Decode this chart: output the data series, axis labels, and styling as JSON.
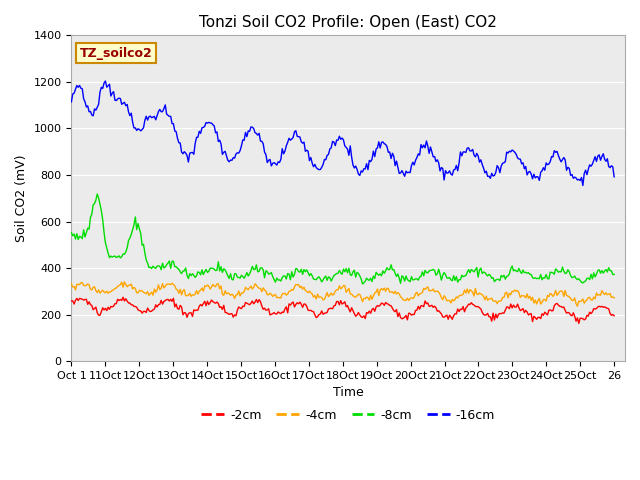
{
  "title": "Tonzi Soil CO2 Profile: Open (East) CO2",
  "ylabel": "Soil CO2 (mV)",
  "xlabel": "Time",
  "ylim": [
    0,
    1400
  ],
  "xtick_labels": [
    "Oct 1",
    "11Oct",
    "12Oct",
    "13Oct",
    "14Oct",
    "15Oct",
    "16Oct",
    "17Oct",
    "18Oct",
    "19Oct",
    "20Oct",
    "21Oct",
    "22Oct",
    "23Oct",
    "24Oct",
    "25Oct",
    "26"
  ],
  "ytick_vals": [
    0,
    200,
    400,
    600,
    800,
    1000,
    1200,
    1400
  ],
  "legend_labels": [
    "-2cm",
    "-4cm",
    "-8cm",
    "-16cm"
  ],
  "line_colors": [
    "#ff0000",
    "#ffa500",
    "#00dd00",
    "#0000ff"
  ],
  "bg_color": "#ebebeb",
  "annotation_text": "TZ_soilco2",
  "annotation_bg": "#ffffcc",
  "annotation_border": "#cc8800",
  "grid_color": "#ffffff",
  "title_fontsize": 11,
  "axis_fontsize": 9,
  "tick_fontsize": 8
}
